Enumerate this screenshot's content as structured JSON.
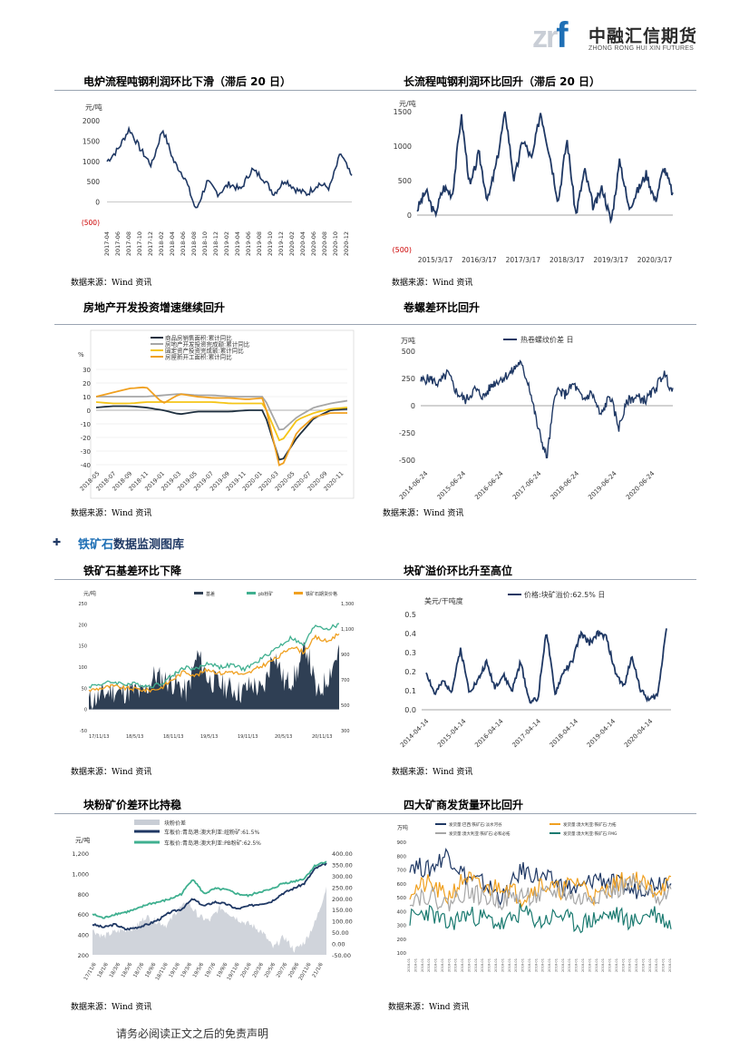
{
  "logo": {
    "mark_a": "zr",
    "mark_b": "f",
    "name_cn": "中融汇信期货",
    "name_en": "ZHONG RONG HUI XIN FUTURES"
  },
  "section": {
    "icon": "✚",
    "title_blue": "铁矿石",
    "title_rest": "数据监测图库"
  },
  "footer": "请务必阅读正文之后的免责声明",
  "charts": [
    {
      "id": "c1",
      "title": "电炉流程吨钢利润环比下滑（滞后 20 日）",
      "source": "数据来源：Wind 资讯",
      "chart_data": {
        "type": "line",
        "ylabel": "元/吨",
        "ylim": [
          -500,
          2000
        ],
        "yticks": [
          "2000",
          "1500",
          "1000",
          "500",
          "0",
          "(500)"
        ],
        "x": [
          "2017-04",
          "2017-06",
          "2017-08",
          "2017-10",
          "2017-12",
          "2018-02",
          "2018-04",
          "2018-06",
          "2018-08",
          "2018-10",
          "2018-12",
          "2019-02",
          "2019-04",
          "2019-06",
          "2019-08",
          "2019-10",
          "2019-12",
          "2020-02",
          "2020-04",
          "2020-06",
          "2020-08",
          "2020-10",
          "2020-12"
        ],
        "series": [
          {
            "values": [
              1000,
              1300,
              1800,
              1300,
              900,
              1800,
              1000,
              600,
              -200,
              500,
              200,
              450,
              300,
              800,
              600,
              200,
              550,
              300,
              200,
              450,
              350,
              1200,
              600
            ]
          }
        ]
      }
    },
    {
      "id": "c2",
      "title": "长流程吨钢利润环比回升（滞后 20 日）",
      "source": "数据来源：Wind 资讯",
      "chart_data": {
        "type": "line",
        "ylabel": "元/吨",
        "ylim": [
          -500,
          1500
        ],
        "yticks": [
          "1500",
          "1000",
          "500",
          "0",
          "(500)"
        ],
        "xticks": [
          "2015/3/17",
          "2016/3/17",
          "2017/3/17",
          "2018/3/17",
          "2019/3/17",
          "2020/3/17"
        ],
        "series": [
          {
            "values": [
              80,
              350,
              0,
              400,
              300,
              1450,
              400,
              900,
              200,
              750,
              1500,
              500,
              1100,
              800,
              1500,
              900,
              200,
              1100,
              0,
              650,
              100,
              400,
              -100,
              800,
              100,
              350,
              600,
              200,
              700,
              300
            ]
          }
        ]
      }
    },
    {
      "id": "c3",
      "title": "房地产开发投资增速继续回升",
      "source": "数据来源：Wind 资讯",
      "chart_data": {
        "type": "line",
        "ylabel": "%",
        "ylim": [
          -40,
          30
        ],
        "yticks": [
          "30",
          "20",
          "10",
          "0",
          "-10",
          "-20",
          "-30",
          "-40"
        ],
        "xticks": [
          "2018-05",
          "2018-07",
          "2018-09",
          "2018-11",
          "2019-01",
          "2019-03",
          "2019-05",
          "2019-07",
          "2019-09",
          "2019-11",
          "2020-01",
          "2020-03",
          "2020-05",
          "2020-07",
          "2020-09",
          "2020-11"
        ],
        "series": [
          {
            "name": "商品房销售面积:累计同比",
            "color": "#1f3040",
            "values": [
              2,
              3,
              3,
              2,
              0,
              -3,
              -1,
              -1,
              -1,
              0,
              0,
              -39,
              -20,
              -6,
              0,
              1
            ]
          },
          {
            "name": "房地产开发投资完成额:累计同比",
            "color": "#a6a6a6",
            "values": [
              10,
              10,
              10,
              10,
              11,
              12,
              11,
              11,
              10,
              10,
              10,
              -16,
              -5,
              2,
              5,
              7
            ]
          },
          {
            "name": "固定资产投资完成额:累计同比",
            "color": "#f5c518",
            "values": [
              6,
              5,
              5,
              6,
              6,
              6,
              6,
              6,
              5,
              5,
              5,
              -24,
              -7,
              -2,
              1,
              2
            ]
          },
          {
            "name": "房屋新开工面积:累计同比",
            "color": "#f0a020",
            "values": [
              10,
              13,
              16,
              17,
              5,
              12,
              10,
              9,
              9,
              8,
              9,
              -44,
              -16,
              -5,
              -2,
              -2
            ]
          }
        ]
      }
    },
    {
      "id": "c4",
      "title": "卷螺差环比回升",
      "source": "数据来源：Wind 资讯",
      "chart_data": {
        "type": "line",
        "ylabel": "万吨",
        "ylim": [
          -500,
          500
        ],
        "yticks": [
          "500",
          "250",
          "0",
          "-250",
          "-500"
        ],
        "xticks": [
          "2014-06-24",
          "2015-06-24",
          "2016-06-24",
          "2017-06-24",
          "2018-06-24",
          "2019-06-24",
          "2020-06-24"
        ],
        "series": [
          {
            "name": "热卷螺纹价差 日",
            "color": "#1f3864",
            "values": [
              230,
              250,
              200,
              300,
              120,
              50,
              150,
              80,
              200,
              250,
              300,
              400,
              200,
              -200,
              -480,
              150,
              100,
              200,
              50,
              120,
              -100,
              100,
              -200,
              50,
              80,
              50,
              150,
              300,
              120
            ]
          }
        ]
      }
    },
    {
      "id": "c5",
      "title": "铁矿石基差环比下降",
      "source": "数据来源：Wind 资讯",
      "chart_data": {
        "type": "area",
        "ylabel": "元/吨",
        "ylim": [
          -50,
          250
        ],
        "yticks": [
          "250",
          "200",
          "150",
          "100",
          "50",
          "0",
          "-50"
        ],
        "y2ticks": [
          "1,300",
          "1,100",
          "900",
          "700",
          "500",
          "300"
        ],
        "xticks": [
          "17/11/13",
          "18/5/13",
          "18/11/13",
          "19/5/13",
          "19/11/13",
          "20/5/13",
          "20/11/13"
        ],
        "series": [
          {
            "name": "基差",
            "color": "#2f3f54"
          },
          {
            "name": "pb粉矿",
            "color": "#40b090"
          },
          {
            "name": "铁矿石期货价格",
            "color": "#f0a020"
          }
        ]
      }
    },
    {
      "id": "c6",
      "title": "块矿溢价环比升至高位",
      "source": "数据来源：Wind 资讯",
      "chart_data": {
        "type": "line",
        "ylabel": "美元/干吨度",
        "ylim": [
          0,
          0.5
        ],
        "yticks": [
          "0.5",
          "0.4",
          "0.3",
          "0.2",
          "0.1",
          "0.0"
        ],
        "xticks": [
          "2014-04-14",
          "2015-04-14",
          "2016-04-14",
          "2017-04-14",
          "2018-04-14",
          "2019-04-14",
          "2020-04-14"
        ],
        "series": [
          {
            "name": "价格:块矿溢价:62.5% 日",
            "color": "#1f3864",
            "values": [
              0.2,
              0.08,
              0.15,
              0.1,
              0.32,
              0.1,
              0.15,
              0.25,
              0.12,
              0.18,
              0.1,
              0.25,
              0.05,
              0.05,
              0.42,
              0.08,
              0.2,
              0.25,
              0.4,
              0.35,
              0.4,
              0.38,
              0.2,
              0.12,
              0.28,
              0.1,
              0.05,
              0.08,
              0.44
            ]
          }
        ]
      }
    },
    {
      "id": "c7",
      "title": "块粉矿价差环比持稳",
      "source": "数据来源：Wind 资讯",
      "chart_data": {
        "type": "area",
        "ylabel": "元/吨",
        "ylim": [
          200,
          1200
        ],
        "yticks": [
          "1,200",
          "1,000",
          "800",
          "600",
          "400",
          "200"
        ],
        "y2ticks": [
          "400.00",
          "350.00",
          "300.00",
          "250.00",
          "200.00",
          "150.00",
          "100.00",
          "50.00",
          "0.00",
          "-50.00"
        ],
        "series": [
          {
            "name": "块粉价差",
            "color": "#c8cdd5"
          },
          {
            "name": "车板价:青岛港:澳大利亚:纽粉矿:61.5%",
            "color": "#1f3864"
          },
          {
            "name": "车板价:青岛港:澳大利亚:PB粉矿:62.5%",
            "color": "#40b090"
          }
        ]
      }
    },
    {
      "id": "c8",
      "title": "四大矿商发货量环比回升",
      "source": "数据来源：Wind 资讯",
      "chart_data": {
        "type": "line",
        "ylabel": "万吨",
        "ylim": [
          100,
          900
        ],
        "yticks": [
          "900",
          "800",
          "700",
          "600",
          "500",
          "400",
          "300",
          "200",
          "100"
        ],
        "series": [
          {
            "name": "发货量:巴西:铁矿石:淡水河谷",
            "color": "#1f3864"
          },
          {
            "name": "发货量:澳大利亚:铁矿石:力拓",
            "color": "#f0a020"
          },
          {
            "name": "发货量:澳大利亚:铁矿石:必和必拓",
            "color": "#a6a6a6"
          },
          {
            "name": "发货量:澳大利亚:铁矿石:FMG",
            "color": "#1a7a70"
          }
        ]
      }
    }
  ]
}
